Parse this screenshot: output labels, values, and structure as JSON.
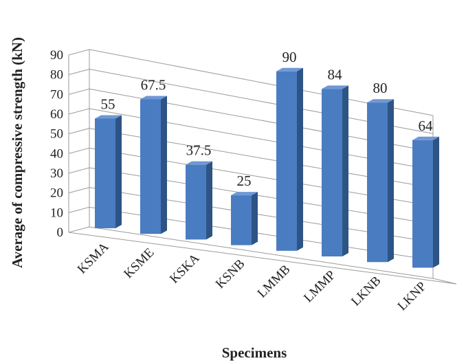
{
  "chart_data": {
    "type": "bar",
    "categories": [
      "KSMA",
      "KSME",
      "KSKA",
      "KSNB",
      "LMMB",
      "LMMP",
      "LKNB",
      "LKNP"
    ],
    "values": [
      55,
      67.5,
      37.5,
      25,
      90,
      84,
      80,
      64
    ],
    "data_labels": [
      "55",
      "67.5",
      "37.5",
      "25",
      "90",
      "84",
      "80",
      "64"
    ],
    "ylim": [
      0,
      90
    ],
    "yticks": [
      "0",
      "10",
      "20",
      "30",
      "40",
      "50",
      "60",
      "70",
      "80",
      "90"
    ],
    "xlabel": "Specimens",
    "ylabel": "Average of compressive strength (kN)",
    "grid": true,
    "legend": "none",
    "style": "3d-column",
    "colors": {
      "bar_front": "#4a7cc2",
      "bar_side": "#2d5484",
      "bar_top": "#6f98d4",
      "grid": "#9a9a9a"
    }
  }
}
